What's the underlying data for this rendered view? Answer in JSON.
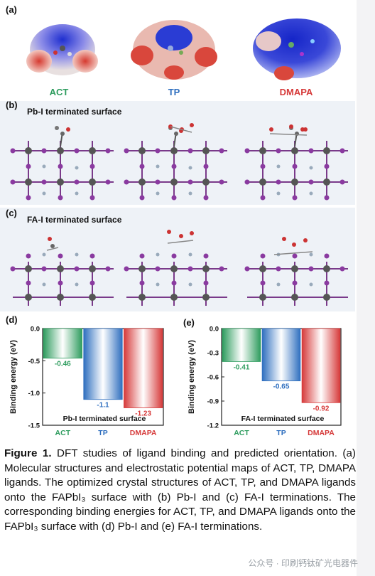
{
  "panels": {
    "a": {
      "label": "(a)",
      "molecules": [
        {
          "name": "ACT",
          "color": "#2e9c5e"
        },
        {
          "name": "TP",
          "color": "#2f6fbf"
        },
        {
          "name": "DMAPA",
          "color": "#d63a3a"
        }
      ]
    },
    "b": {
      "label": "(b)",
      "title": "Pb-I terminated surface"
    },
    "c": {
      "label": "(c)",
      "title": "FA-I terminated surface"
    },
    "d": {
      "label": "(d)"
    },
    "e": {
      "label": "(e)"
    }
  },
  "chart_data": [
    {
      "type": "bar",
      "panel": "(d)",
      "categories": [
        "ACT",
        "TP",
        "DMAPA"
      ],
      "values": [
        -0.46,
        -1.1,
        -1.23
      ],
      "value_labels": [
        "-0.46",
        "-1.1",
        "-1.23"
      ],
      "ylabel": "Binding energy (eV)",
      "ylim": [
        -1.5,
        0.0
      ],
      "yticks": [
        "0.0",
        "-0.5",
        "-1.0",
        "-1.5"
      ],
      "annotation": "Pb-I terminated surface",
      "colors": [
        "#2e9c5e",
        "#2f6fbf",
        "#d63a3a"
      ]
    },
    {
      "type": "bar",
      "panel": "(e)",
      "categories": [
        "ACT",
        "TP",
        "DMAPA"
      ],
      "values": [
        -0.41,
        -0.65,
        -0.92
      ],
      "value_labels": [
        "-0.41",
        "-0.65",
        "-0.92"
      ],
      "ylabel": "Binding energy (eV)",
      "ylim": [
        -1.2,
        0.0
      ],
      "yticks": [
        "0.0",
        "-0.3",
        "-0.6",
        "-0.9",
        "-1.2"
      ],
      "annotation": "FA-I terminated surface",
      "colors": [
        "#2e9c5e",
        "#2f6fbf",
        "#d63a3a"
      ]
    }
  ],
  "caption": {
    "prefix": "Figure 1.",
    "text": " DFT studies of ligand binding and predicted orientation. (a) Molecular structures and electrostatic potential maps of ACT, TP, DMAPA ligands. The optimized crystal structures of ACT, TP, and DMAPA ligands onto the FAPbI₃ surface with (b) Pb-I and (c) FA-I terminations. The corresponding binding energies for ACT, TP, and DMAPA ligands onto the FAPbI₃ surface with (d) Pb-I and (e) FA-I terminations."
  },
  "watermark": "公众号 · 印刷钙钛矿光电器件"
}
